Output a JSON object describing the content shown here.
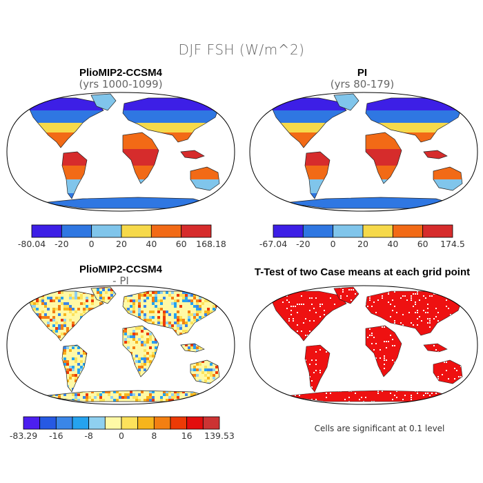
{
  "main_title": "DJF FSH (W/m^2)",
  "panels": [
    {
      "title": "PlioMIP2-CCSM4",
      "subtitle": "(yrs 1000-1099)"
    },
    {
      "title": "PI",
      "subtitle": "(yrs 80-179)"
    },
    {
      "title": "PlioMIP2-CCSM4",
      "subtitle": "- PI"
    },
    {
      "title": "T-Test of two Case means at each grid point",
      "subtitle": ""
    }
  ],
  "footnote": "Cells are significant at 0.1 level",
  "colors": {
    "absolute_bins": [
      "#3d1fe6",
      "#2f77e2",
      "#80c5eb",
      "#f6d94a",
      "#f26a16",
      "#d62c2c"
    ],
    "diff_bins": [
      "#4c1ff0",
      "#2659e3",
      "#3a86e8",
      "#25a3ef",
      "#8fd0f0",
      "#fff9a6",
      "#fde25b",
      "#f7b51c",
      "#f37f12",
      "#ec3a06",
      "#e30d0d",
      "#cc3333"
    ],
    "ttest": "#ee1111",
    "frame": "#000000"
  },
  "chart_data": [
    {
      "type": "map",
      "panel": "PlioMIP2-CCSM4 (yrs 1000-1099)",
      "colorbar": {
        "ticks": [
          "-80.04",
          "-20",
          "0",
          "20",
          "40",
          "60",
          "168.18"
        ],
        "bins": 6
      }
    },
    {
      "type": "map",
      "panel": "PI (yrs 80-179)",
      "colorbar": {
        "ticks": [
          "-67.04",
          "-20",
          "0",
          "20",
          "40",
          "60",
          "174.5"
        ],
        "bins": 6
      }
    },
    {
      "type": "map",
      "panel": "PlioMIP2-CCSM4 - PI",
      "colorbar": {
        "ticks": [
          "-83.29",
          "-16",
          "-8",
          "0",
          "8",
          "16",
          "139.53"
        ],
        "bins": 12
      }
    },
    {
      "type": "map",
      "panel": "T-Test of two Case means at each grid point",
      "note": "Cells are significant at 0.1 level"
    }
  ]
}
